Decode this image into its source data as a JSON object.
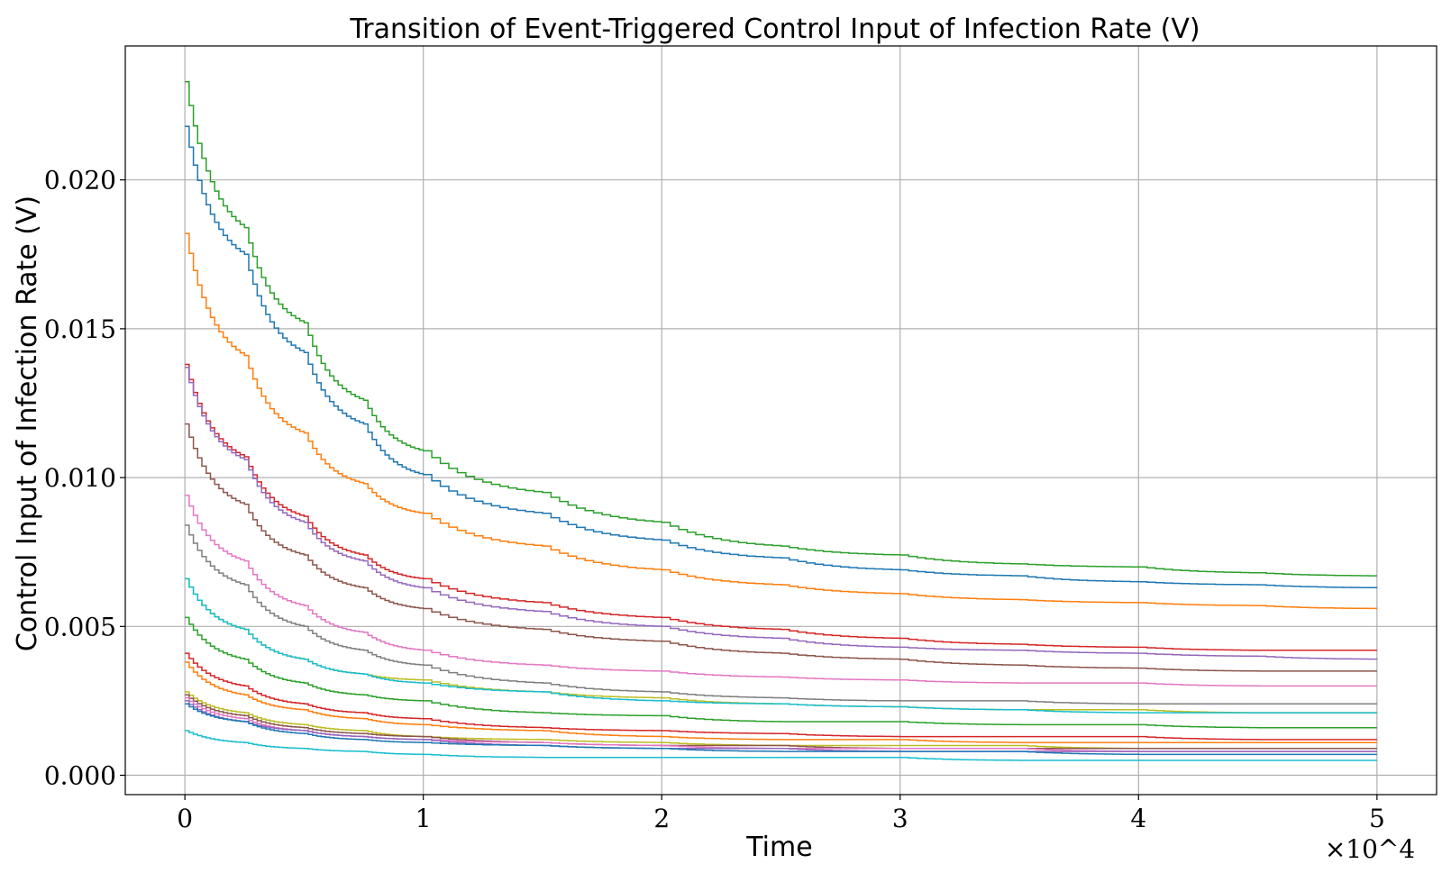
{
  "chart_data": {
    "type": "line",
    "title": "Transition of Event-Triggered Control Input of Infection Rate (V)",
    "xlabel": "Time",
    "ylabel": "Control Input of Infection Rate (V)",
    "x_offset_text": "×10^4",
    "xlim": [
      -2500,
      52500
    ],
    "ylim": [
      -0.00065,
      0.0245
    ],
    "x_ticks": [
      0,
      10000,
      20000,
      30000,
      40000,
      50000
    ],
    "x_tick_labels": [
      "0",
      "1",
      "2",
      "3",
      "4",
      "5"
    ],
    "y_ticks": [
      0.0,
      0.005,
      0.01,
      0.015,
      0.02
    ],
    "y_tick_labels": [
      "0.000",
      "0.005",
      "0.010",
      "0.015",
      "0.020"
    ],
    "grid": true,
    "x": [
      0,
      2500,
      5000,
      7500,
      10000,
      15000,
      20000,
      25000,
      30000,
      35000,
      40000,
      45000,
      50000
    ],
    "series": [
      {
        "color": "#1f77b4",
        "values": [
          0.0218,
          0.0175,
          0.0142,
          0.0118,
          0.0101,
          0.0088,
          0.0079,
          0.0073,
          0.0069,
          0.0067,
          0.0065,
          0.0064,
          0.0063
        ]
      },
      {
        "color": "#ff7f0e",
        "values": [
          0.0182,
          0.0141,
          0.0115,
          0.0098,
          0.0088,
          0.0077,
          0.0069,
          0.0064,
          0.0061,
          0.0059,
          0.0058,
          0.0057,
          0.0056
        ]
      },
      {
        "color": "#2ca02c",
        "values": [
          0.0233,
          0.0184,
          0.0152,
          0.0126,
          0.0109,
          0.0095,
          0.0085,
          0.0077,
          0.0074,
          0.0071,
          0.007,
          0.0068,
          0.0067
        ]
      },
      {
        "color": "#d62728",
        "values": [
          0.0138,
          0.0107,
          0.0087,
          0.0074,
          0.0066,
          0.0058,
          0.0053,
          0.0049,
          0.0046,
          0.0044,
          0.0043,
          0.0042,
          0.0042
        ]
      },
      {
        "color": "#9467bd",
        "values": [
          0.0137,
          0.0106,
          0.0085,
          0.0072,
          0.0063,
          0.0055,
          0.005,
          0.0046,
          0.0043,
          0.0042,
          0.0041,
          0.004,
          0.0039
        ]
      },
      {
        "color": "#8c564b",
        "values": [
          0.0118,
          0.0091,
          0.0074,
          0.0063,
          0.0056,
          0.0049,
          0.0045,
          0.0041,
          0.0039,
          0.0037,
          0.0036,
          0.0035,
          0.0035
        ]
      },
      {
        "color": "#e377c2",
        "values": [
          0.0094,
          0.0072,
          0.0057,
          0.0048,
          0.0042,
          0.0037,
          0.0035,
          0.0033,
          0.0032,
          0.0031,
          0.0031,
          0.003,
          0.003
        ]
      },
      {
        "color": "#7f7f7f",
        "values": [
          0.0084,
          0.0064,
          0.005,
          0.0042,
          0.0037,
          0.0031,
          0.0028,
          0.0026,
          0.0025,
          0.0025,
          0.0024,
          0.0024,
          0.0024
        ]
      },
      {
        "color": "#bcbd22",
        "values": [
          0.0066,
          0.0049,
          0.0039,
          0.0034,
          0.0032,
          0.0028,
          0.0026,
          0.0024,
          0.0023,
          0.0022,
          0.0022,
          0.0021,
          0.0021
        ]
      },
      {
        "color": "#17becf",
        "values": [
          0.0066,
          0.0049,
          0.0039,
          0.0034,
          0.0031,
          0.0028,
          0.0025,
          0.0024,
          0.0023,
          0.0022,
          0.0021,
          0.0021,
          0.0021
        ]
      },
      {
        "color": "#2ca02c",
        "values": [
          0.0053,
          0.0039,
          0.0031,
          0.0027,
          0.0025,
          0.0021,
          0.002,
          0.0018,
          0.0018,
          0.0017,
          0.0017,
          0.0016,
          0.0016
        ]
      },
      {
        "color": "#d62728",
        "values": [
          0.0041,
          0.003,
          0.0024,
          0.0021,
          0.0019,
          0.0016,
          0.0015,
          0.0014,
          0.0013,
          0.0013,
          0.0013,
          0.0012,
          0.0012
        ]
      },
      {
        "color": "#ff7f0e",
        "values": [
          0.0038,
          0.0027,
          0.0022,
          0.0019,
          0.0017,
          0.0015,
          0.0013,
          0.0012,
          0.0012,
          0.0011,
          0.0011,
          0.0011,
          0.0011
        ]
      },
      {
        "color": "#bcbd22",
        "values": [
          0.0028,
          0.0021,
          0.0017,
          0.0015,
          0.0013,
          0.0012,
          0.0011,
          0.001,
          0.001,
          0.001,
          0.0009,
          0.0009,
          0.0009
        ]
      },
      {
        "color": "#8c564b",
        "values": [
          0.0027,
          0.002,
          0.0016,
          0.0014,
          0.0013,
          0.0011,
          0.001,
          0.001,
          0.0009,
          0.0009,
          0.0009,
          0.0009,
          0.0009
        ]
      },
      {
        "color": "#e377c2",
        "values": [
          0.0026,
          0.0019,
          0.0015,
          0.0013,
          0.0012,
          0.0011,
          0.001,
          0.0009,
          0.0009,
          0.0009,
          0.0008,
          0.0008,
          0.0008
        ]
      },
      {
        "color": "#9467bd",
        "values": [
          0.0025,
          0.0018,
          0.0015,
          0.0013,
          0.0012,
          0.001,
          0.0009,
          0.0009,
          0.0008,
          0.0008,
          0.0008,
          0.0008,
          0.0008
        ]
      },
      {
        "color": "#1f77b4",
        "values": [
          0.0024,
          0.0018,
          0.0014,
          0.0012,
          0.0011,
          0.001,
          0.0009,
          0.0008,
          0.0008,
          0.0008,
          0.0007,
          0.0007,
          0.0007
        ]
      },
      {
        "color": "#17becf",
        "values": [
          0.0015,
          0.0011,
          0.0009,
          0.0008,
          0.0007,
          0.0006,
          0.0006,
          0.0006,
          0.0006,
          0.0005,
          0.0005,
          0.0005,
          0.0005
        ]
      }
    ]
  }
}
